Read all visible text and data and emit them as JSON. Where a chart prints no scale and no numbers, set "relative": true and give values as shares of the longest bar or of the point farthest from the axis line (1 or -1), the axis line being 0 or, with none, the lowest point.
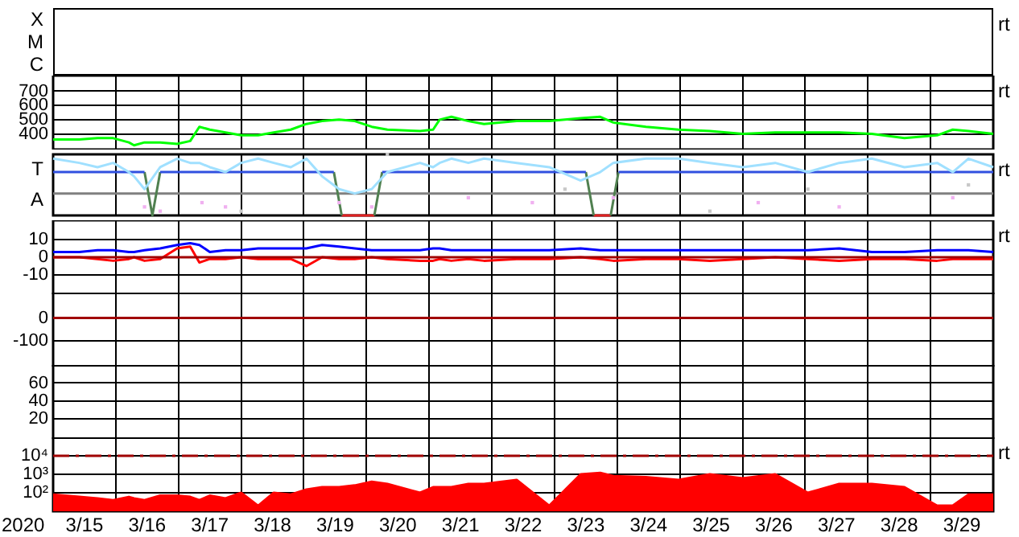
{
  "chart_data": [
    {
      "type": "other",
      "annotations": [
        "X",
        "M",
        "C",
        "rt"
      ]
    },
    {
      "type": "line",
      "xlim": [
        "2020-03-15T00:00",
        "2020-03-30T00:00"
      ],
      "ylim": [
        290,
        810
      ],
      "grid": true,
      "tick_labels": "y",
      "xticks": [
        {
          "value": "2020-03-15T00:00",
          "label": null
        },
        {
          "value": "2020-03-16T00:00",
          "label": null
        },
        {
          "value": "2020-03-17T00:00",
          "label": null
        },
        {
          "value": "2020-03-18T00:00",
          "label": null
        },
        {
          "value": "2020-03-19T00:00",
          "label": null
        },
        {
          "value": "2020-03-20T00:00",
          "label": null
        },
        {
          "value": "2020-03-21T00:00",
          "label": null
        },
        {
          "value": "2020-03-22T00:00",
          "label": null
        },
        {
          "value": "2020-03-23T00:00",
          "label": null
        },
        {
          "value": "2020-03-24T00:00",
          "label": null
        },
        {
          "value": "2020-03-25T00:00",
          "label": null
        },
        {
          "value": "2020-03-26T00:00",
          "label": null
        },
        {
          "value": "2020-03-27T00:00",
          "label": null
        },
        {
          "value": "2020-03-28T00:00",
          "label": null
        },
        {
          "value": "2020-03-29T00:00",
          "label": null
        },
        {
          "value": "2020-03-30T00:00",
          "label": null
        }
      ],
      "yticks": [
        400,
        500,
        600,
        700
      ],
      "x": [
        "2020-03-15T00:00",
        "2020-03-15T10:00",
        "2020-03-15T17:00",
        "2020-03-15T23:00",
        "2020-03-16T05:00",
        "2020-03-16T07:00",
        "2020-03-16T11:00",
        "2020-03-16T17:00",
        "2020-03-16T23:30",
        "2020-03-17T04:30",
        "2020-03-17T08:00",
        "2020-03-17T12:00",
        "2020-03-17T18:00",
        "2020-03-18T00:00",
        "2020-03-18T06:30",
        "2020-03-18T12:30",
        "2020-03-18T19:00",
        "2020-03-19T01:00",
        "2020-03-19T07:00",
        "2020-03-19T13:30",
        "2020-03-19T19:30",
        "2020-03-20T02:00",
        "2020-03-20T08:00",
        "2020-03-20T20:30",
        "2020-03-21T01:30",
        "2020-03-21T04:00",
        "2020-03-21T08:30",
        "2020-03-21T15:00",
        "2020-03-21T21:00",
        "2020-03-22T09:30",
        "2020-03-22T22:00",
        "2020-03-23T10:00",
        "2020-03-23T17:30",
        "2020-03-23T22:30",
        "2020-03-24T11:00",
        "2020-03-24T23:30",
        "2020-03-25T11:30",
        "2020-03-26T00:00",
        "2020-03-26T12:30",
        "2020-03-27T01:00",
        "2020-03-27T13:00",
        "2020-03-28T01:30",
        "2020-03-28T14:00",
        "2020-03-29T02:30",
        "2020-03-29T08:30",
        "2020-03-29T14:30",
        "2020-03-30T00:00"
      ],
      "series": [
        {
          "color": "#00ff00",
          "values": [
            360,
            360,
            370,
            370,
            340,
            320,
            340,
            340,
            330,
            350,
            450,
            430,
            410,
            390,
            390,
            410,
            430,
            470,
            490,
            500,
            490,
            450,
            430,
            420,
            430,
            500,
            520,
            490,
            470,
            490,
            490,
            510,
            520,
            480,
            450,
            430,
            420,
            400,
            410,
            410,
            410,
            400,
            370,
            390,
            430,
            420,
            400
          ]
        }
      ],
      "annotations": [
        "rt"
      ]
    },
    {
      "type": "line",
      "relative": true,
      "grid": "x",
      "tick_labels": false,
      "xlim": [
        "2020-03-15T00:00",
        "2020-03-30T00:00"
      ],
      "xticks": [
        {
          "value": "2020-03-15T00:00",
          "label": null
        },
        {
          "value": "2020-03-16T00:00",
          "label": null
        },
        {
          "value": "2020-03-17T00:00",
          "label": null
        },
        {
          "value": "2020-03-18T00:00",
          "label": null
        },
        {
          "value": "2020-03-19T00:00",
          "label": null
        },
        {
          "value": "2020-03-20T00:00",
          "label": null
        },
        {
          "value": "2020-03-21T00:00",
          "label": null
        },
        {
          "value": "2020-03-22T00:00",
          "label": null
        },
        {
          "value": "2020-03-23T00:00",
          "label": null
        },
        {
          "value": "2020-03-24T00:00",
          "label": null
        },
        {
          "value": "2020-03-25T00:00",
          "label": null
        },
        {
          "value": "2020-03-26T00:00",
          "label": null
        },
        {
          "value": "2020-03-27T00:00",
          "label": null
        },
        {
          "value": "2020-03-28T00:00",
          "label": null
        },
        {
          "value": "2020-03-29T00:00",
          "label": null
        },
        {
          "value": "2020-03-30T00:00",
          "label": null
        }
      ],
      "x": [
        "2020-03-15T00:00",
        "2020-03-15T10:00",
        "2020-03-15T17:00",
        "2020-03-15T23:00",
        "2020-03-16T05:00",
        "2020-03-16T07:00",
        "2020-03-16T11:00",
        "2020-03-16T17:00",
        "2020-03-16T23:30",
        "2020-03-17T04:30",
        "2020-03-17T08:00",
        "2020-03-17T12:00",
        "2020-03-17T18:00",
        "2020-03-18T00:00",
        "2020-03-18T06:30",
        "2020-03-18T12:30",
        "2020-03-18T19:00",
        "2020-03-19T01:00",
        "2020-03-19T07:00",
        "2020-03-19T13:30",
        "2020-03-19T19:30",
        "2020-03-20T02:00",
        "2020-03-20T08:00",
        "2020-03-20T20:30",
        "2020-03-21T01:30",
        "2020-03-21T04:00",
        "2020-03-21T08:30",
        "2020-03-21T15:00",
        "2020-03-21T21:00",
        "2020-03-22T09:30",
        "2020-03-22T22:00",
        "2020-03-23T10:00",
        "2020-03-23T17:30",
        "2020-03-23T22:30",
        "2020-03-24T11:00",
        "2020-03-24T23:30",
        "2020-03-25T11:30",
        "2020-03-26T00:00",
        "2020-03-26T12:30",
        "2020-03-27T01:00",
        "2020-03-27T13:00",
        "2020-03-28T01:30",
        "2020-03-28T14:00",
        "2020-03-29T02:30",
        "2020-03-29T08:30",
        "2020-03-29T14:30",
        "2020-03-30T00:00"
      ],
      "series": [
        {
          "color": "#a0e0ff",
          "values": [
            0.93,
            0.86,
            0.79,
            0.86,
            0.71,
            0.64,
            0.43,
            0.79,
            0.93,
            0.86,
            0.86,
            0.79,
            0.71,
            0.86,
            0.93,
            0.86,
            0.79,
            0.93,
            0.64,
            0.43,
            0.36,
            0.43,
            0.71,
            0.86,
            0.79,
            0.86,
            0.93,
            0.86,
            0.93,
            0.86,
            0.79,
            0.57,
            0.71,
            0.86,
            0.93,
            0.93,
            0.86,
            0.79,
            0.86,
            0.71,
            0.86,
            0.93,
            0.79,
            0.86,
            0.71,
            0.93,
            0.79
          ]
        },
        {
          "type": "scatter",
          "marker": "square",
          "color": "#f0b0f0",
          "x": [
            "2020-03-16T11:00",
            "2020-03-16T17:00",
            "2020-03-17T09:00",
            "2020-03-17T18:00",
            "2020-03-19T13:30",
            "2020-03-20T02:00",
            "2020-03-21T15:00",
            "2020-03-22T15:30",
            "2020-03-23T22:30",
            "2020-03-26T06:00",
            "2020-03-27T13:00",
            "2020-03-29T08:30"
          ],
          "values": [
            0.14,
            0.07,
            0.21,
            0.14,
            0.21,
            0.14,
            0.29,
            0.21,
            0.29,
            0.21,
            0.14,
            0.29
          ]
        },
        {
          "type": "scatter",
          "marker": "square",
          "color": "#c8c8c8",
          "x": [
            "2020-03-18T00:00",
            "2020-03-20T08:00",
            "2020-03-23T04:00",
            "2020-03-25T11:30",
            "2020-03-27T01:00",
            "2020-03-29T14:30"
          ],
          "values": [
            0.07,
            1,
            0.43,
            0.07,
            0.43,
            0.5
          ]
        },
        {
          "color": "#3050e0",
          "x": [
            "2020-03-15T00:00",
            "2020-03-16T11:00",
            "2020-03-16T14:00",
            "2020-03-16T17:00",
            "2020-03-19T11:30",
            "2020-03-19T19:30",
            "2020-03-20T06:00",
            "2020-03-23T12:00",
            "2020-03-23T16:00",
            "2020-03-24T00:30",
            "2020-03-30T00:00"
          ],
          "values": [
            0.71,
            0.71,
            null,
            0.71,
            0.71,
            null,
            0.71,
            0.71,
            null,
            0.71,
            0.71
          ]
        },
        {
          "color": "#508050",
          "x": [
            "2020-03-16T11:00",
            "2020-03-16T14:00",
            "2020-03-16T17:00",
            "2020-03-17T00:00",
            "2020-03-19T11:30",
            "2020-03-19T14:30",
            "2020-03-19T19:30",
            "2020-03-20T03:00",
            "2020-03-20T06:00",
            "2020-03-21T00:00",
            "2020-03-23T12:00",
            "2020-03-23T15:00",
            "2020-03-23T18:00",
            "2020-03-23T21:30",
            "2020-03-24T00:30"
          ],
          "values": [
            0.71,
            0,
            0.71,
            null,
            0.71,
            0,
            null,
            0,
            0.71,
            null,
            0.71,
            0,
            null,
            0,
            0.71
          ]
        },
        {
          "color": "#e02020",
          "x": [
            "2020-03-19T14:30",
            "2020-03-20T03:00",
            "2020-03-21T00:00",
            "2020-03-23T15:00",
            "2020-03-23T21:30"
          ],
          "values": [
            0,
            0,
            null,
            0,
            0
          ]
        },
        {
          "color": "#808080",
          "x": [
            "2020-03-15T00:00",
            "2020-03-30T00:00"
          ],
          "values": [
            0.36,
            0.36
          ]
        }
      ],
      "annotations": [
        "T",
        "A",
        "rt"
      ]
    },
    {
      "type": "line",
      "xlim": [
        "2020-03-15T00:00",
        "2020-03-30T00:00"
      ],
      "ylim": [
        -21,
        21
      ],
      "grid": true,
      "tick_labels": "y",
      "xticks": [
        {
          "value": "2020-03-15T00:00",
          "label": null
        },
        {
          "value": "2020-03-16T00:00",
          "label": null
        },
        {
          "value": "2020-03-17T00:00",
          "label": null
        },
        {
          "value": "2020-03-18T00:00",
          "label": null
        },
        {
          "value": "2020-03-19T00:00",
          "label": null
        },
        {
          "value": "2020-03-20T00:00",
          "label": null
        },
        {
          "value": "2020-03-21T00:00",
          "label": null
        },
        {
          "value": "2020-03-22T00:00",
          "label": null
        },
        {
          "value": "2020-03-23T00:00",
          "label": null
        },
        {
          "value": "2020-03-24T00:00",
          "label": null
        },
        {
          "value": "2020-03-25T00:00",
          "label": null
        },
        {
          "value": "2020-03-26T00:00",
          "label": null
        },
        {
          "value": "2020-03-27T00:00",
          "label": null
        },
        {
          "value": "2020-03-28T00:00",
          "label": null
        },
        {
          "value": "2020-03-29T00:00",
          "label": null
        },
        {
          "value": "2020-03-30T00:00",
          "label": null
        }
      ],
      "yticks": [
        10,
        0,
        -10
      ],
      "x": [
        "2020-03-15T00:00",
        "2020-03-15T10:00",
        "2020-03-15T17:00",
        "2020-03-15T23:00",
        "2020-03-16T05:00",
        "2020-03-16T07:00",
        "2020-03-16T11:00",
        "2020-03-16T17:00",
        "2020-03-16T23:30",
        "2020-03-17T04:30",
        "2020-03-17T08:00",
        "2020-03-17T12:00",
        "2020-03-17T18:00",
        "2020-03-18T00:00",
        "2020-03-18T06:30",
        "2020-03-18T12:30",
        "2020-03-18T19:00",
        "2020-03-19T01:00",
        "2020-03-19T07:00",
        "2020-03-19T13:30",
        "2020-03-19T19:30",
        "2020-03-20T02:00",
        "2020-03-20T08:00",
        "2020-03-20T20:30",
        "2020-03-21T01:30",
        "2020-03-21T04:00",
        "2020-03-21T08:30",
        "2020-03-21T15:00",
        "2020-03-21T21:00",
        "2020-03-22T09:30",
        "2020-03-22T22:00",
        "2020-03-23T10:00",
        "2020-03-23T17:30",
        "2020-03-23T22:30",
        "2020-03-24T11:00",
        "2020-03-24T23:30",
        "2020-03-25T11:30",
        "2020-03-26T00:00",
        "2020-03-26T12:30",
        "2020-03-27T01:00",
        "2020-03-27T13:00",
        "2020-03-28T01:30",
        "2020-03-28T14:00",
        "2020-03-29T02:30",
        "2020-03-29T08:30",
        "2020-03-29T14:30",
        "2020-03-30T00:00"
      ],
      "series": [
        {
          "color": "#0000ff",
          "values": [
            3,
            3,
            4,
            4,
            3,
            3,
            4,
            5,
            7,
            8,
            7,
            3,
            4,
            4,
            5,
            5,
            5,
            5,
            7,
            6,
            5,
            4,
            4,
            4,
            5,
            5,
            4,
            4,
            4,
            4,
            4,
            5,
            4,
            4,
            4,
            4,
            4,
            4,
            4,
            4,
            5,
            3,
            3,
            4,
            4,
            4,
            3
          ]
        },
        {
          "color": "#ff0000",
          "values": [
            0,
            0,
            -1,
            -2,
            -1,
            0,
            -2,
            -1,
            5,
            6,
            -3,
            -1,
            -1,
            0,
            -1,
            -1,
            -1,
            -5,
            0,
            -1,
            -1,
            0,
            -1,
            -2,
            -2,
            -1,
            -2,
            -1,
            -2,
            -1,
            -1,
            0,
            -1,
            -2,
            -1,
            -1,
            -2,
            -1,
            0,
            -1,
            -2,
            -1,
            -1,
            -2,
            -1,
            -1,
            -1
          ]
        }
      ],
      "ref_lines": [
        {
          "axis": "y",
          "value": 0,
          "color": "#a00000"
        }
      ],
      "annotations": [
        "rt"
      ]
    },
    {
      "type": "line",
      "xlim": [
        "2020-03-15T00:00",
        "2020-03-30T00:00"
      ],
      "ylim": [
        -211,
        110
      ],
      "grid": true,
      "tick_labels": "y",
      "xticks": [
        {
          "value": "2020-03-15T00:00",
          "label": null
        },
        {
          "value": "2020-03-16T00:00",
          "label": null
        },
        {
          "value": "2020-03-17T00:00",
          "label": null
        },
        {
          "value": "2020-03-18T00:00",
          "label": null
        },
        {
          "value": "2020-03-19T00:00",
          "label": null
        },
        {
          "value": "2020-03-20T00:00",
          "label": null
        },
        {
          "value": "2020-03-21T00:00",
          "label": null
        },
        {
          "value": "2020-03-22T00:00",
          "label": null
        },
        {
          "value": "2020-03-23T00:00",
          "label": null
        },
        {
          "value": "2020-03-24T00:00",
          "label": null
        },
        {
          "value": "2020-03-25T00:00",
          "label": null
        },
        {
          "value": "2020-03-26T00:00",
          "label": null
        },
        {
          "value": "2020-03-27T00:00",
          "label": null
        },
        {
          "value": "2020-03-28T00:00",
          "label": null
        },
        {
          "value": "2020-03-29T00:00",
          "label": null
        },
        {
          "value": "2020-03-30T00:00",
          "label": null
        }
      ],
      "yticks": [
        0,
        -100
      ],
      "ref_lines": [
        {
          "axis": "y",
          "value": 0,
          "color": "#a00000"
        }
      ]
    },
    {
      "type": "line",
      "xlim": [
        "2020-03-15T00:00",
        "2020-03-30T00:00"
      ],
      "ylim": [
        -2,
        80
      ],
      "grid": true,
      "tick_labels": "y",
      "xticks": [
        {
          "value": "2020-03-15T00:00",
          "label": null
        },
        {
          "value": "2020-03-16T00:00",
          "label": null
        },
        {
          "value": "2020-03-17T00:00",
          "label": null
        },
        {
          "value": "2020-03-18T00:00",
          "label": null
        },
        {
          "value": "2020-03-19T00:00",
          "label": null
        },
        {
          "value": "2020-03-20T00:00",
          "label": null
        },
        {
          "value": "2020-03-21T00:00",
          "label": null
        },
        {
          "value": "2020-03-22T00:00",
          "label": null
        },
        {
          "value": "2020-03-23T00:00",
          "label": null
        },
        {
          "value": "2020-03-24T00:00",
          "label": null
        },
        {
          "value": "2020-03-25T00:00",
          "label": null
        },
        {
          "value": "2020-03-26T00:00",
          "label": null
        },
        {
          "value": "2020-03-27T00:00",
          "label": null
        },
        {
          "value": "2020-03-28T00:00",
          "label": null
        },
        {
          "value": "2020-03-29T00:00",
          "label": null
        },
        {
          "value": "2020-03-30T00:00",
          "label": null
        }
      ],
      "yticks": [
        60,
        40,
        20
      ]
    },
    {
      "type": "area",
      "xlabel": "2020",
      "xlim": [
        "2020-03-15T00:00",
        "2020-03-30T00:00"
      ],
      "ylim": [
        10,
        100000
      ],
      "log": true,
      "grid": true,
      "xticks": [
        {
          "value": "2020-03-15T00:00",
          "label": null
        },
        {
          "value": "2020-03-15T12:00",
          "label": "3/15"
        },
        {
          "value": "2020-03-16T00:00",
          "label": null
        },
        {
          "value": "2020-03-16T12:00",
          "label": "3/16"
        },
        {
          "value": "2020-03-17T00:00",
          "label": null
        },
        {
          "value": "2020-03-17T12:00",
          "label": "3/17"
        },
        {
          "value": "2020-03-18T00:00",
          "label": null
        },
        {
          "value": "2020-03-18T12:00",
          "label": "3/18"
        },
        {
          "value": "2020-03-19T00:00",
          "label": null
        },
        {
          "value": "2020-03-19T12:00",
          "label": "3/19"
        },
        {
          "value": "2020-03-20T00:00",
          "label": null
        },
        {
          "value": "2020-03-20T12:00",
          "label": "3/20"
        },
        {
          "value": "2020-03-21T00:00",
          "label": null
        },
        {
          "value": "2020-03-21T12:00",
          "label": "3/21"
        },
        {
          "value": "2020-03-22T00:00",
          "label": null
        },
        {
          "value": "2020-03-22T12:00",
          "label": "3/22"
        },
        {
          "value": "2020-03-23T00:00",
          "label": null
        },
        {
          "value": "2020-03-23T12:00",
          "label": "3/23"
        },
        {
          "value": "2020-03-24T00:00",
          "label": null
        },
        {
          "value": "2020-03-24T12:00",
          "label": "3/24"
        },
        {
          "value": "2020-03-25T00:00",
          "label": null
        },
        {
          "value": "2020-03-25T12:00",
          "label": "3/25"
        },
        {
          "value": "2020-03-26T00:00",
          "label": null
        },
        {
          "value": "2020-03-26T12:00",
          "label": "3/26"
        },
        {
          "value": "2020-03-27T00:00",
          "label": null
        },
        {
          "value": "2020-03-27T12:00",
          "label": "3/27"
        },
        {
          "value": "2020-03-28T00:00",
          "label": null
        },
        {
          "value": "2020-03-28T12:00",
          "label": "3/28"
        },
        {
          "value": "2020-03-29T00:00",
          "label": null
        },
        {
          "value": "2020-03-29T12:00",
          "label": "3/29"
        },
        {
          "value": "2020-03-30T00:00",
          "label": null
        }
      ],
      "yticks": [
        {
          "value": 10000,
          "label": "10⁴"
        },
        {
          "value": 1000,
          "label": "10³"
        },
        {
          "value": 100,
          "label": "10²"
        }
      ],
      "x": [
        "2020-03-15T00:00",
        "2020-03-15T10:00",
        "2020-03-15T17:00",
        "2020-03-15T23:00",
        "2020-03-16T05:00",
        "2020-03-16T07:00",
        "2020-03-16T11:00",
        "2020-03-16T17:00",
        "2020-03-16T23:30",
        "2020-03-17T04:30",
        "2020-03-17T08:00",
        "2020-03-17T12:00",
        "2020-03-17T18:00",
        "2020-03-18T00:00",
        "2020-03-18T06:30",
        "2020-03-18T12:30",
        "2020-03-18T19:00",
        "2020-03-19T01:00",
        "2020-03-19T07:00",
        "2020-03-19T13:30",
        "2020-03-19T19:30",
        "2020-03-20T02:00",
        "2020-03-20T08:00",
        "2020-03-20T20:30",
        "2020-03-21T01:30",
        "2020-03-21T04:00",
        "2020-03-21T08:30",
        "2020-03-21T15:00",
        "2020-03-21T21:00",
        "2020-03-22T09:30",
        "2020-03-22T22:00",
        "2020-03-23T10:00",
        "2020-03-23T17:30",
        "2020-03-23T22:30",
        "2020-03-24T11:00",
        "2020-03-24T23:30",
        "2020-03-25T11:30",
        "2020-03-26T00:00",
        "2020-03-26T12:30",
        "2020-03-27T01:00",
        "2020-03-27T13:00",
        "2020-03-28T01:30",
        "2020-03-28T14:00",
        "2020-03-29T02:30",
        "2020-03-29T08:30",
        "2020-03-29T14:30",
        "2020-03-30T00:00"
      ],
      "series": [
        {
          "color": "#ff0000",
          "values": [
            80,
            60,
            50,
            40,
            60,
            50,
            40,
            70,
            70,
            60,
            40,
            70,
            50,
            100,
            20,
            100,
            80,
            150,
            200,
            200,
            250,
            400,
            300,
            100,
            200,
            200,
            200,
            300,
            300,
            500,
            20,
            1000,
            1200,
            800,
            700,
            500,
            1000,
            600,
            1000,
            100,
            300,
            300,
            200,
            20,
            20,
            80,
            80
          ]
        }
      ],
      "ref_lines": [
        {
          "axis": "y",
          "value": 10000,
          "color": "#a00000",
          "line_style": "dashed"
        }
      ],
      "annotations": [
        "rt"
      ]
    }
  ]
}
